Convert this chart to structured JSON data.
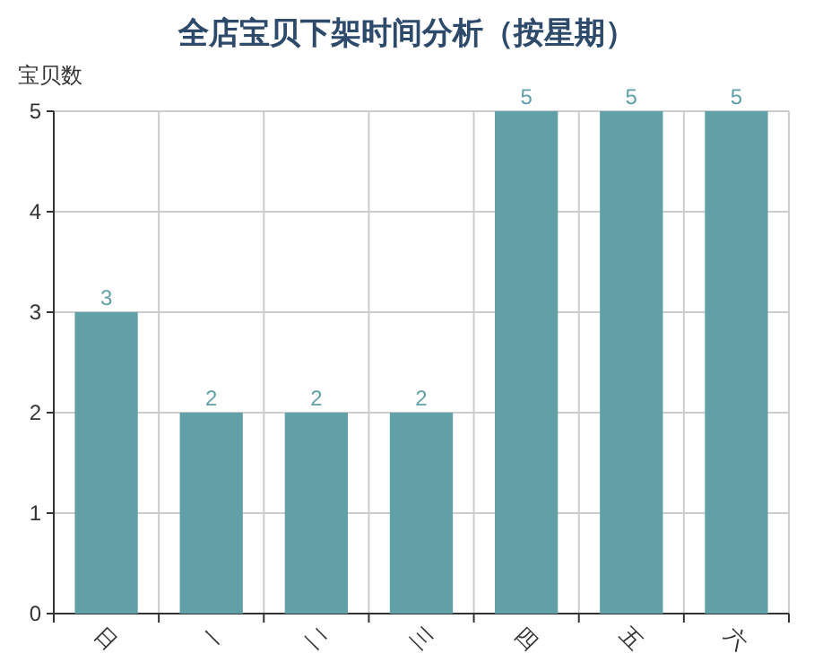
{
  "chart_data": {
    "type": "bar",
    "title": "全店宝贝下架时间分析（按星期）",
    "ylabel": "宝贝数",
    "categories": [
      "日",
      "一",
      "二",
      "三",
      "四",
      "五",
      "六"
    ],
    "series": [
      {
        "color": "#62a0a8",
        "values": [
          3,
          2,
          2,
          2,
          5,
          5,
          5
        ]
      }
    ],
    "ylim": [
      0,
      5
    ],
    "yticks": [
      0,
      1,
      2,
      3,
      4,
      5
    ],
    "grid": true,
    "data_labels": true
  }
}
